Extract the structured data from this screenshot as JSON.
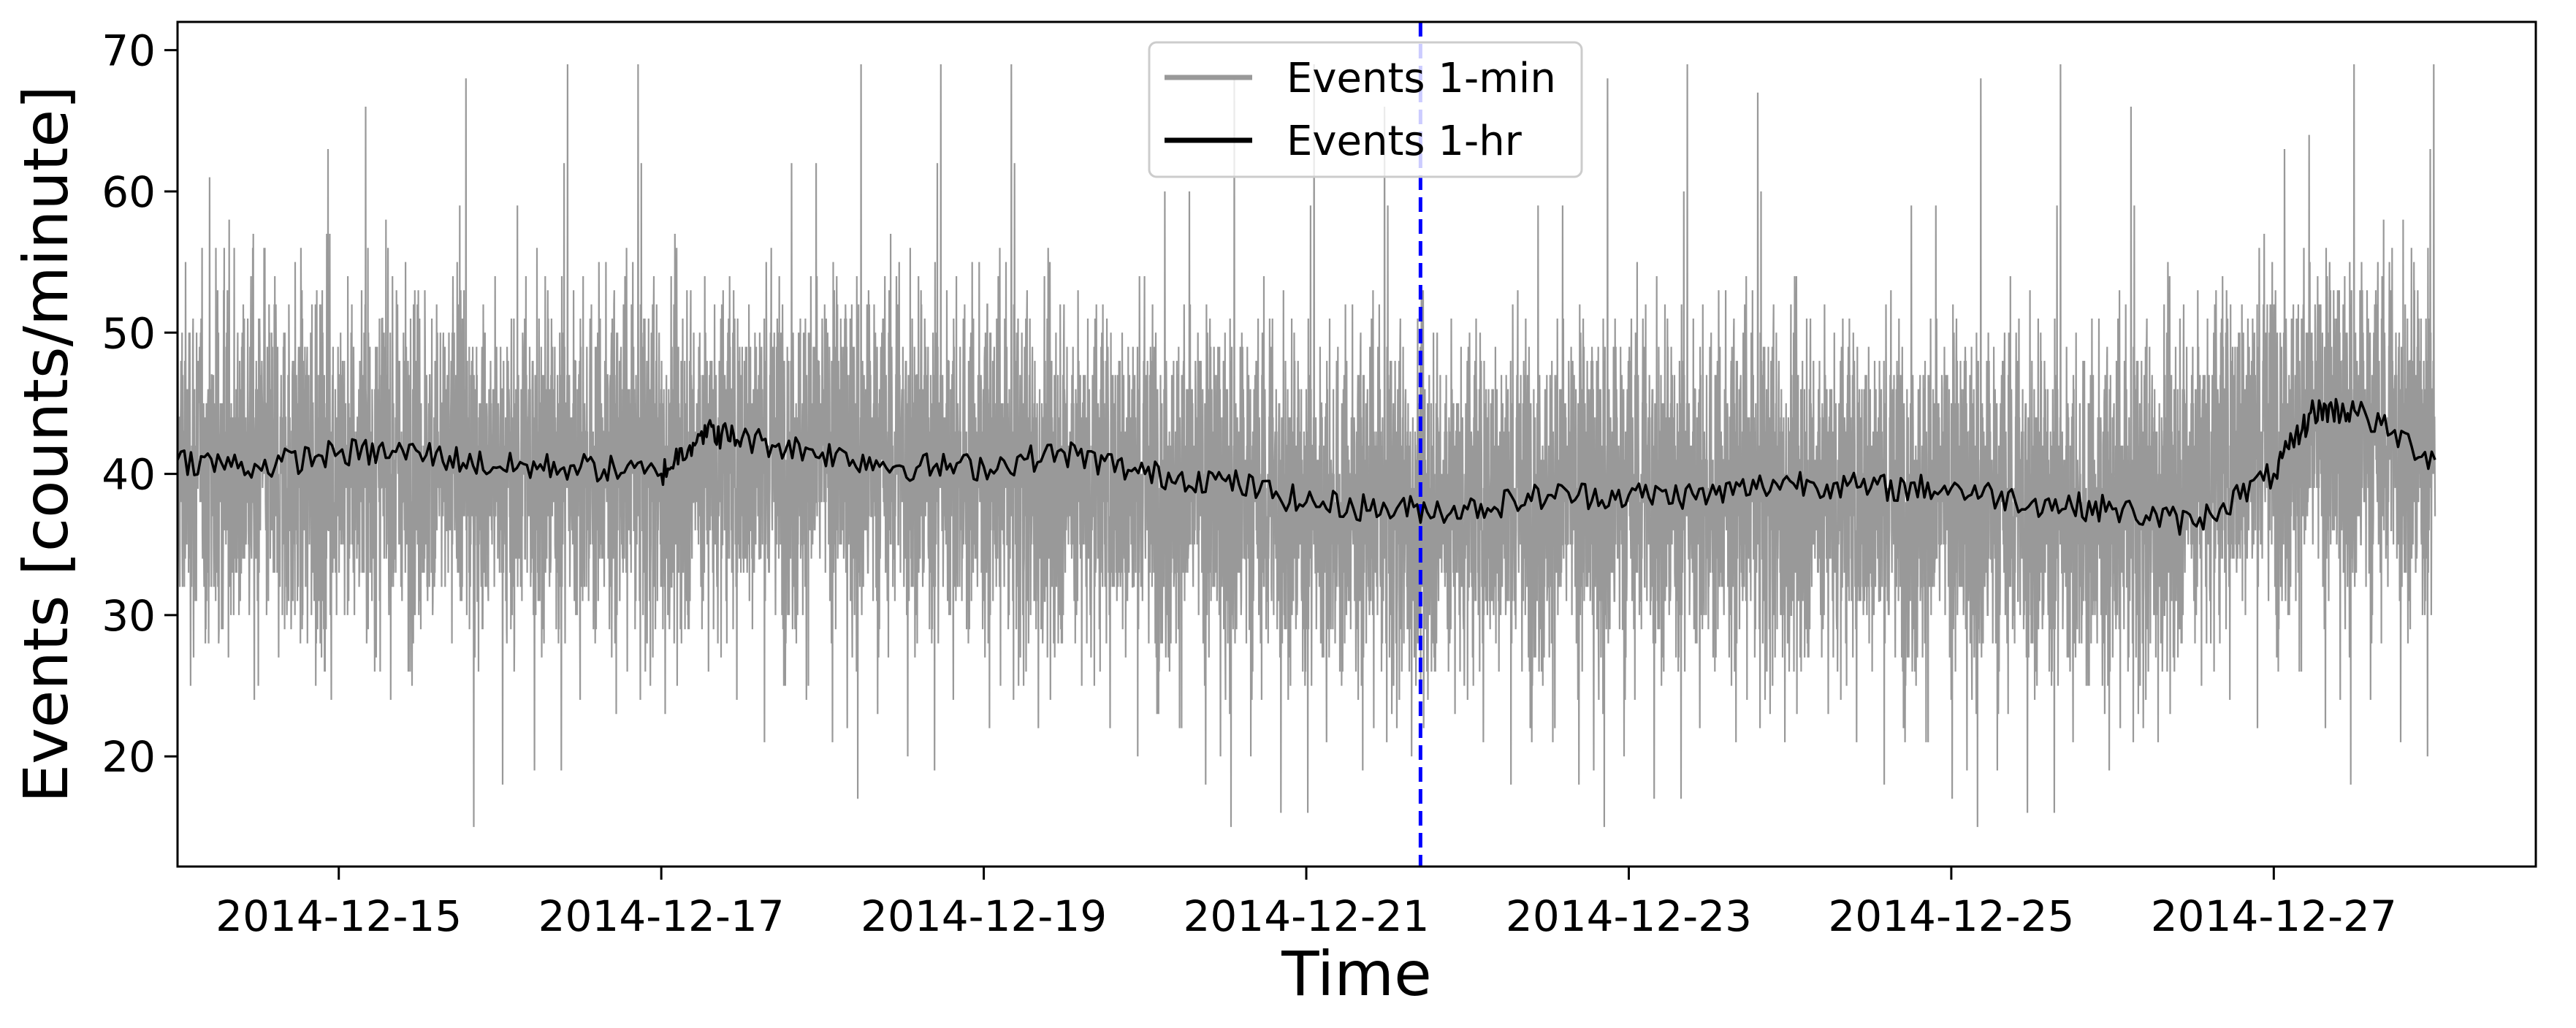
{
  "chart_data": {
    "type": "line",
    "title": "",
    "xlabel": "Time",
    "ylabel": "Events [counts/minute]",
    "x_range": [
      "2014-12-14T00:00",
      "2014-12-28T15:00"
    ],
    "ylim": [
      12.2,
      72
    ],
    "x_ticks": [
      "2014-12-15",
      "2014-12-17",
      "2014-12-19",
      "2014-12-21",
      "2014-12-23",
      "2014-12-25",
      "2014-12-27"
    ],
    "y_ticks": [
      20,
      30,
      40,
      50,
      60,
      70
    ],
    "grid": false,
    "legend_position": "top-center",
    "vertical_marker": {
      "x": "2014-12-21T17:00",
      "color": "#0000ff",
      "style": "dashed"
    },
    "series": [
      {
        "name": "Events 1-min",
        "color": "#999999",
        "x_start": "2014-12-14T00:00",
        "x_end": "2014-12-28T00:00",
        "interval": "1 minute",
        "mean_envelope": [
          [
            "2014-12-14T00:00",
            41.0
          ],
          [
            "2014-12-15T00:00",
            40.5
          ],
          [
            "2014-12-16T00:00",
            40.5
          ],
          [
            "2014-12-17T00:00",
            41.0
          ],
          [
            "2014-12-18T00:00",
            41.5
          ],
          [
            "2014-12-19T00:00",
            40.5
          ],
          [
            "2014-12-20T00:00",
            39.5
          ],
          [
            "2014-12-21T00:00",
            37.5
          ],
          [
            "2014-12-22T00:00",
            38.0
          ],
          [
            "2014-12-23T00:00",
            38.5
          ],
          [
            "2014-12-24T00:00",
            39.0
          ],
          [
            "2014-12-25T00:00",
            38.0
          ],
          [
            "2014-12-26T00:00",
            37.0
          ],
          [
            "2014-12-27T00:00",
            43.0
          ],
          [
            "2014-12-28T00:00",
            42.0
          ]
        ],
        "min": 15,
        "max": 69
      },
      {
        "name": "Events 1-hr",
        "color": "#000000",
        "x": [
          "2014-12-14T00:00",
          "2014-12-14T12:00",
          "2014-12-15T00:00",
          "2014-12-15T12:00",
          "2014-12-16T00:00",
          "2014-12-16T12:00",
          "2014-12-17T00:00",
          "2014-12-17T06:00",
          "2014-12-17T12:00",
          "2014-12-18T00:00",
          "2014-12-18T12:00",
          "2014-12-19T00:00",
          "2014-12-19T12:00",
          "2014-12-20T00:00",
          "2014-12-20T12:00",
          "2014-12-21T00:00",
          "2014-12-21T12:00",
          "2014-12-22T00:00",
          "2014-12-22T12:00",
          "2014-12-23T00:00",
          "2014-12-23T12:00",
          "2014-12-24T00:00",
          "2014-12-24T12:00",
          "2014-12-25T00:00",
          "2014-12-25T12:00",
          "2014-12-26T00:00",
          "2014-12-26T12:00",
          "2014-12-27T00:00",
          "2014-12-27T06:00",
          "2014-12-27T12:00",
          "2014-12-28T00:00"
        ],
        "values": [
          41.0,
          40.5,
          41.5,
          41.5,
          40.5,
          40.5,
          40.0,
          43.0,
          42.5,
          41.5,
          40.5,
          40.5,
          41.5,
          40.0,
          39.5,
          38.0,
          37.5,
          37.5,
          38.5,
          38.5,
          38.5,
          39.5,
          39.0,
          39.0,
          38.0,
          37.5,
          36.5,
          40.0,
          44.5,
          44.5,
          41.0
        ]
      }
    ]
  }
}
